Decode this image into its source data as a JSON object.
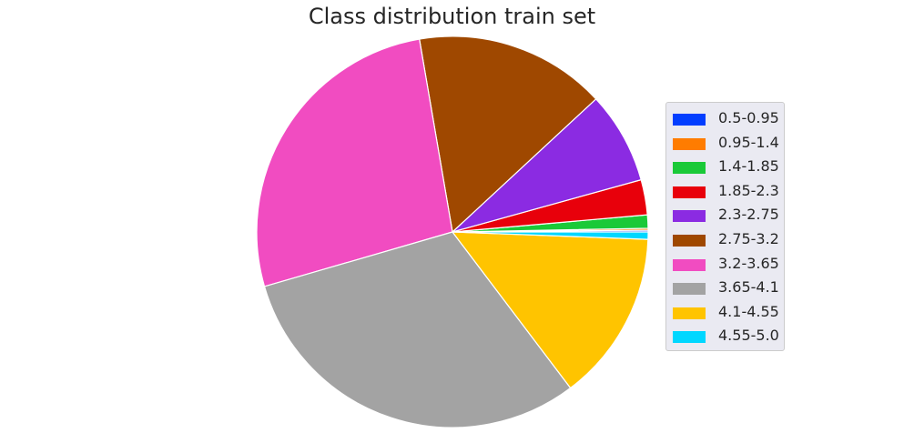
{
  "chart_data": {
    "type": "pie",
    "title": "Class distribution train set",
    "legend_position": "right",
    "start_angle_deg": 0,
    "direction": "counterclockwise",
    "slices": [
      {
        "label": "0.5-0.95",
        "value": 0.15,
        "color": "#023eff"
      },
      {
        "label": "0.95-1.4",
        "value": 0.15,
        "color": "#ff7c00"
      },
      {
        "label": "1.4-1.85",
        "value": 1.1,
        "color": "#1ac938"
      },
      {
        "label": "1.85-2.3",
        "value": 2.9,
        "color": "#e8000b"
      },
      {
        "label": "2.3-2.75",
        "value": 7.6,
        "color": "#8b2be2"
      },
      {
        "label": "2.75-3.2",
        "value": 15.8,
        "color": "#9f4800"
      },
      {
        "label": "3.2-3.65",
        "value": 26.8,
        "color": "#f14cc1"
      },
      {
        "label": "3.65-4.1",
        "value": 30.8,
        "color": "#a3a3a3"
      },
      {
        "label": "4.1-4.55",
        "value": 14.1,
        "color": "#ffc400"
      },
      {
        "label": "4.55-5.0",
        "value": 0.6,
        "color": "#00d7ff"
      }
    ]
  }
}
